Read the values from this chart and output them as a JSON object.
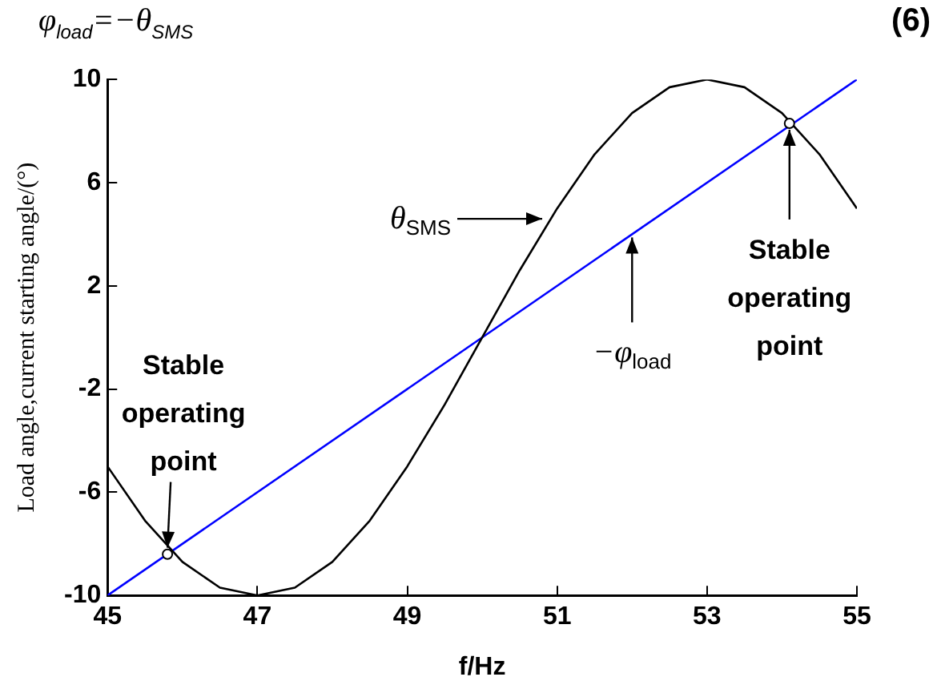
{
  "chart_data": {
    "type": "line",
    "xlabel": "f/Hz",
    "ylabel": "Load angle,current starting angle/(°)",
    "xlim": [
      45,
      55
    ],
    "xticks": [
      45,
      47,
      49,
      51,
      53,
      55
    ],
    "ylim": [
      -10,
      10
    ],
    "yticks": [
      -10,
      -6,
      -2,
      2,
      6,
      10
    ],
    "grid": false,
    "marker": "none",
    "line_style": "solid",
    "series": [
      {
        "name": "θ$_{SMS}$",
        "color": "#000000",
        "x": [
          45,
          45.5,
          46,
          46.5,
          47,
          47.5,
          48,
          48.5,
          49,
          49.5,
          50,
          50.5,
          51,
          51.5,
          52,
          52.5,
          53,
          53.5,
          54,
          54.5,
          55
        ],
        "values": [
          -5,
          -7.1,
          -8.7,
          -9.7,
          -10,
          -9.7,
          -8.7,
          -7.1,
          -5,
          -2.6,
          0,
          2.6,
          5,
          7.1,
          8.7,
          9.7,
          10,
          9.7,
          8.7,
          7.1,
          5
        ]
      },
      {
        "name": "−φ$_{load}$",
        "color": "#0000ff",
        "x": [
          45,
          55
        ],
        "values": [
          -10,
          10
        ]
      }
    ],
    "annotations": [
      "φ$_{load}$=−θ$_{SMS}$",
      "(6)",
      {
        "text": "Stable operating point",
        "x": 45.8,
        "y": -8.4
      },
      {
        "text": "Stable operating point",
        "x": 54.1,
        "y": 8.3
      }
    ]
  }
}
